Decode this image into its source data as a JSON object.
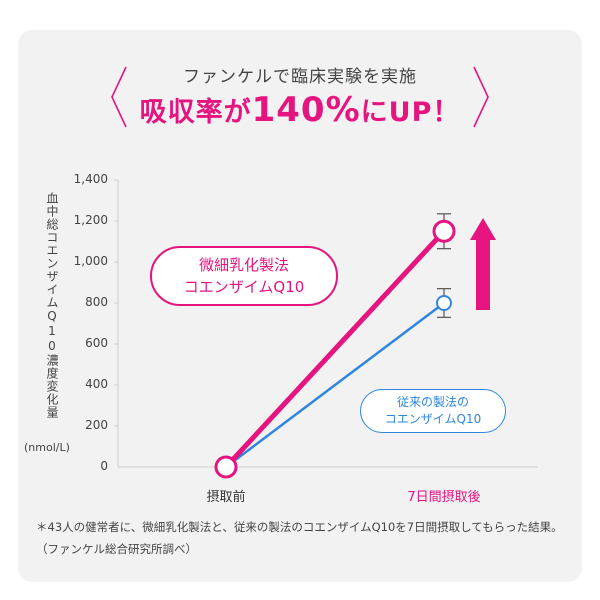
{
  "header": {
    "subtitle": "ファンケルで臨床実験を実施",
    "claim_pre": "吸収率が",
    "claim_value": "140%",
    "claim_post": "にUP！"
  },
  "colors": {
    "accent": "#e5147f",
    "blue": "#2f86e0",
    "card": "#f2f2f2"
  },
  "chart_data": {
    "type": "line",
    "ylabel": "血中総コエンザイムQ10濃度変化量",
    "yunit": "(nmol/L)",
    "categories": [
      "摂取前",
      "7日間摂取後"
    ],
    "ylim": [
      0,
      1400
    ],
    "yticks": [
      "0",
      "200",
      "400",
      "600",
      "800",
      "1,000",
      "1,200",
      "1,400"
    ],
    "series": [
      {
        "name": "微細乳化製法 コエンザイムQ10",
        "values": [
          0,
          1150
        ],
        "error": [
          0,
          85
        ],
        "color": "#e5147f"
      },
      {
        "name": "従来の製法の コエンザイムQ10",
        "values": [
          0,
          800
        ],
        "error": [
          0,
          70
        ],
        "color": "#2f86e0"
      }
    ]
  },
  "legend": {
    "pink_line1": "微細乳化製法",
    "pink_line2": "コエンザイムQ10",
    "blue_line1": "従来の製法の",
    "blue_line2": "コエンザイムQ10"
  },
  "note": "＊43人の健常者に、微細乳化製法と、従来の製法のコエンザイムQ10を7日間摂取してもらった結果。（ファンケル総合研究所調べ）"
}
